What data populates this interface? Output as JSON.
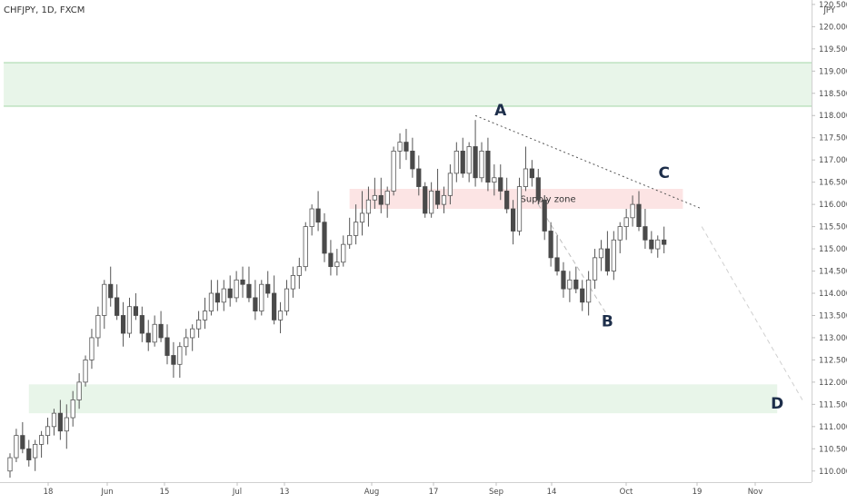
{
  "chart_data": {
    "type": "candlestick",
    "symbol_label": "CHFJPY, 1D, FXCM",
    "currency": "JPY",
    "price_axis": {
      "ticks": [
        "110.000",
        "110.500",
        "111.000",
        "111.500",
        "112.000",
        "112.500",
        "113.000",
        "113.500",
        "114.000",
        "114.500",
        "115.000",
        "115.500",
        "116.000",
        "116.500",
        "117.000",
        "117.500",
        "118.000",
        "118.500",
        "119.000",
        "119.500",
        "120.000",
        "120.500"
      ],
      "ylim": [
        109.75,
        120.6
      ]
    },
    "time_axis": {
      "labels": [
        "18",
        "Jun",
        "15",
        "Jul",
        "13",
        "Aug",
        "17",
        "Sep",
        "14",
        "Oct",
        "19",
        "Nov"
      ]
    },
    "zones": [
      {
        "kind": "demand",
        "low": 118.2,
        "high": 119.2,
        "from_bar": -1,
        "to_bar": 200,
        "color": "#e8f5e9",
        "border": "#a5d6a7"
      },
      {
        "kind": "demand",
        "low": 111.3,
        "high": 111.95,
        "from_bar": 3,
        "to_bar": 122,
        "color": "#e8f5e9",
        "border": ""
      },
      {
        "kind": "supply",
        "label": "Supply zone",
        "low": 115.9,
        "high": 116.35,
        "from_bar": 54,
        "to_bar": 107,
        "color": "#fce4e4",
        "border": ""
      }
    ],
    "wave_labels": [
      {
        "text": "A",
        "bar": 78,
        "price": 118.0
      },
      {
        "text": "B",
        "bar": 95,
        "price": 113.25
      },
      {
        "text": "C",
        "bar": 104,
        "price": 116.6
      },
      {
        "text": "D",
        "bar": 122,
        "price": 111.4
      }
    ],
    "lines": [
      {
        "style": "dotted",
        "color": "#555555",
        "points": [
          [
            74,
            118.0
          ],
          [
            110,
            115.9
          ]
        ]
      },
      {
        "style": "dashed",
        "color": "#bdbdbd",
        "points": [
          [
            84,
            116.0
          ],
          [
            95,
            113.5
          ]
        ]
      },
      {
        "style": "dashed",
        "color": "#d0d0d0",
        "points": [
          [
            110,
            115.5
          ],
          [
            126,
            111.6
          ]
        ]
      }
    ],
    "candles": [
      [
        110.0,
        110.4,
        109.85,
        110.3
      ],
      [
        110.3,
        110.95,
        110.2,
        110.8
      ],
      [
        110.8,
        111.1,
        110.4,
        110.5
      ],
      [
        110.5,
        110.7,
        110.1,
        110.25
      ],
      [
        110.3,
        110.7,
        110.0,
        110.6
      ],
      [
        110.6,
        110.9,
        110.3,
        110.8
      ],
      [
        110.8,
        111.2,
        110.6,
        111.0
      ],
      [
        111.0,
        111.4,
        110.8,
        111.3
      ],
      [
        111.3,
        111.6,
        110.7,
        110.9
      ],
      [
        110.9,
        111.5,
        110.5,
        111.2
      ],
      [
        111.2,
        111.8,
        111.0,
        111.6
      ],
      [
        111.6,
        112.2,
        111.4,
        112.0
      ],
      [
        112.0,
        112.6,
        111.9,
        112.5
      ],
      [
        112.5,
        113.2,
        112.3,
        113.0
      ],
      [
        113.0,
        113.7,
        112.8,
        113.5
      ],
      [
        113.5,
        114.3,
        113.2,
        114.2
      ],
      [
        114.2,
        114.6,
        113.7,
        113.9
      ],
      [
        113.9,
        114.2,
        113.4,
        113.5
      ],
      [
        113.5,
        113.8,
        112.8,
        113.1
      ],
      [
        113.1,
        113.9,
        113.0,
        113.7
      ],
      [
        113.7,
        114.0,
        113.4,
        113.5
      ],
      [
        113.5,
        113.7,
        112.9,
        113.1
      ],
      [
        113.1,
        113.4,
        112.7,
        112.9
      ],
      [
        112.9,
        113.5,
        112.8,
        113.3
      ],
      [
        113.3,
        113.6,
        112.9,
        113.0
      ],
      [
        113.0,
        113.3,
        112.4,
        112.6
      ],
      [
        112.6,
        112.9,
        112.1,
        112.4
      ],
      [
        112.4,
        112.9,
        112.1,
        112.8
      ],
      [
        112.8,
        113.2,
        112.6,
        113.0
      ],
      [
        113.0,
        113.3,
        112.7,
        113.2
      ],
      [
        113.2,
        113.6,
        113.0,
        113.4
      ],
      [
        113.4,
        113.9,
        113.2,
        113.6
      ],
      [
        113.6,
        114.3,
        113.5,
        114.0
      ],
      [
        114.0,
        114.3,
        113.6,
        113.8
      ],
      [
        113.8,
        114.3,
        113.6,
        114.1
      ],
      [
        114.1,
        114.4,
        113.7,
        113.9
      ],
      [
        113.9,
        114.5,
        113.8,
        114.3
      ],
      [
        114.3,
        114.6,
        113.9,
        114.2
      ],
      [
        114.2,
        114.6,
        113.8,
        113.9
      ],
      [
        113.9,
        114.3,
        113.4,
        113.6
      ],
      [
        113.6,
        114.3,
        113.5,
        114.2
      ],
      [
        114.2,
        114.5,
        113.9,
        114.0
      ],
      [
        114.0,
        114.4,
        113.3,
        113.4
      ],
      [
        113.4,
        113.8,
        113.1,
        113.6
      ],
      [
        113.6,
        114.3,
        113.5,
        114.1
      ],
      [
        114.1,
        114.6,
        113.9,
        114.4
      ],
      [
        114.4,
        114.8,
        114.1,
        114.6
      ],
      [
        114.6,
        115.6,
        114.5,
        115.5
      ],
      [
        115.5,
        116.0,
        115.3,
        115.9
      ],
      [
        115.9,
        116.3,
        115.4,
        115.6
      ],
      [
        115.6,
        115.8,
        114.7,
        114.9
      ],
      [
        114.9,
        115.2,
        114.4,
        114.6
      ],
      [
        114.6,
        115.0,
        114.4,
        114.7
      ],
      [
        114.7,
        115.3,
        114.6,
        115.1
      ],
      [
        115.1,
        115.7,
        115.0,
        115.3
      ],
      [
        115.3,
        116.0,
        115.1,
        115.6
      ],
      [
        115.6,
        116.3,
        115.3,
        115.8
      ],
      [
        115.8,
        116.4,
        115.5,
        116.1
      ],
      [
        116.1,
        116.6,
        115.9,
        116.2
      ],
      [
        116.2,
        116.6,
        115.8,
        116.0
      ],
      [
        116.0,
        116.4,
        115.7,
        116.3
      ],
      [
        116.3,
        117.3,
        116.2,
        117.2
      ],
      [
        117.2,
        117.6,
        116.8,
        117.4
      ],
      [
        117.4,
        117.7,
        117.0,
        117.2
      ],
      [
        117.2,
        117.5,
        116.6,
        116.8
      ],
      [
        116.8,
        117.1,
        116.2,
        116.4
      ],
      [
        116.4,
        116.5,
        115.7,
        115.8
      ],
      [
        115.8,
        116.5,
        115.7,
        116.3
      ],
      [
        116.3,
        116.8,
        115.9,
        116.0
      ],
      [
        116.0,
        116.4,
        115.8,
        116.2
      ],
      [
        116.2,
        116.9,
        116.0,
        116.7
      ],
      [
        116.7,
        117.4,
        116.5,
        117.2
      ],
      [
        117.2,
        117.5,
        116.6,
        116.7
      ],
      [
        116.7,
        117.4,
        116.5,
        117.3
      ],
      [
        117.3,
        117.9,
        116.4,
        116.6
      ],
      [
        116.6,
        117.4,
        116.5,
        117.2
      ],
      [
        117.2,
        117.5,
        116.3,
        116.5
      ],
      [
        116.5,
        116.9,
        116.2,
        116.6
      ],
      [
        116.6,
        116.9,
        116.1,
        116.3
      ],
      [
        116.3,
        116.6,
        115.8,
        115.9
      ],
      [
        115.9,
        116.1,
        115.1,
        115.4
      ],
      [
        115.4,
        116.6,
        115.3,
        116.4
      ],
      [
        116.4,
        117.3,
        116.3,
        116.8
      ],
      [
        116.8,
        117.0,
        116.4,
        116.6
      ],
      [
        116.6,
        116.8,
        116.0,
        116.1
      ],
      [
        116.1,
        116.2,
        115.2,
        115.4
      ],
      [
        115.4,
        115.6,
        114.6,
        114.8
      ],
      [
        114.8,
        115.3,
        114.4,
        114.5
      ],
      [
        114.5,
        114.7,
        113.9,
        114.1
      ],
      [
        114.1,
        114.5,
        113.8,
        114.3
      ],
      [
        114.3,
        114.6,
        114.0,
        114.1
      ],
      [
        114.1,
        114.3,
        113.6,
        113.8
      ],
      [
        113.8,
        114.5,
        113.5,
        114.3
      ],
      [
        114.3,
        115.0,
        114.1,
        114.8
      ],
      [
        114.8,
        115.2,
        114.5,
        115.0
      ],
      [
        115.0,
        115.4,
        114.4,
        114.5
      ],
      [
        114.5,
        115.4,
        114.3,
        115.2
      ],
      [
        115.2,
        115.6,
        114.9,
        115.5
      ],
      [
        115.5,
        115.9,
        115.2,
        115.7
      ],
      [
        115.7,
        116.2,
        115.5,
        116.0
      ],
      [
        116.0,
        116.3,
        115.4,
        115.5
      ],
      [
        115.5,
        115.9,
        115.0,
        115.2
      ],
      [
        115.2,
        115.4,
        114.9,
        115.0
      ],
      [
        115.0,
        115.3,
        114.8,
        115.2
      ],
      [
        115.2,
        115.5,
        114.9,
        115.1
      ]
    ]
  }
}
